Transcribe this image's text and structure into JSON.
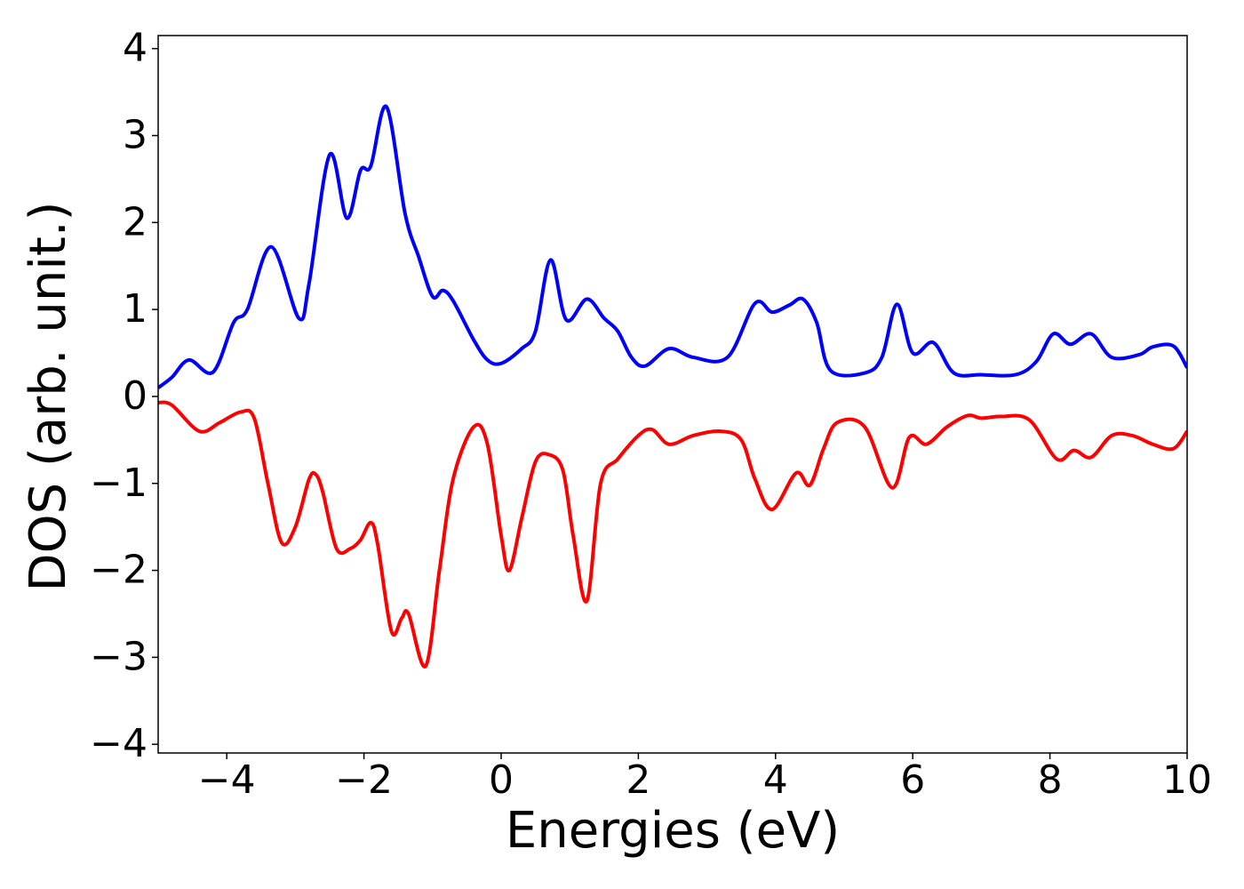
{
  "chart_data": {
    "type": "line",
    "xlabel": "Energies (eV)",
    "ylabel": "DOS (arb. unit.)",
    "xlim": [
      -5,
      10
    ],
    "ylim": [
      -4.1,
      4.15
    ],
    "xticks": [
      {
        "value": -4,
        "label": "−4"
      },
      {
        "value": -2,
        "label": "−2"
      },
      0,
      2,
      4,
      6,
      8,
      10
    ],
    "yticks": [
      {
        "value": -4,
        "label": "−4"
      },
      {
        "value": -3,
        "label": "−3"
      },
      {
        "value": -2,
        "label": "−2"
      },
      {
        "value": -1,
        "label": "−1"
      },
      0,
      1,
      2,
      3,
      4
    ],
    "grid": false,
    "series": [
      {
        "color": "#0000ff",
        "x": [
          -5,
          -4.8,
          -4.55,
          -4.2,
          -3.9,
          -3.7,
          -3.35,
          -2.95,
          -2.8,
          -2.5,
          -2.25,
          -2.05,
          -1.9,
          -1.67,
          -1.4,
          -1.2,
          -1.0,
          -0.85,
          -0.7,
          -0.4,
          -0.2,
          0,
          0.3,
          0.5,
          0.72,
          0.95,
          1.25,
          1.5,
          1.7,
          1.9,
          2.1,
          2.45,
          2.8,
          3.3,
          3.7,
          3.95,
          4.2,
          4.4,
          4.6,
          4.8,
          5.3,
          5.55,
          5.77,
          6.0,
          6.3,
          6.6,
          7.0,
          7.5,
          7.8,
          8.05,
          8.3,
          8.6,
          8.9,
          9.3,
          9.5,
          9.8,
          10
        ],
        "values": [
          0.1,
          0.22,
          0.42,
          0.28,
          0.85,
          1.0,
          1.72,
          0.9,
          1.3,
          2.78,
          2.05,
          2.6,
          2.65,
          3.33,
          2.1,
          1.6,
          1.15,
          1.22,
          1.1,
          0.65,
          0.42,
          0.38,
          0.55,
          0.75,
          1.57,
          0.88,
          1.12,
          0.9,
          0.75,
          0.45,
          0.35,
          0.55,
          0.45,
          0.45,
          1.07,
          0.97,
          1.05,
          1.12,
          0.85,
          0.3,
          0.27,
          0.45,
          1.06,
          0.5,
          0.62,
          0.27,
          0.25,
          0.25,
          0.4,
          0.72,
          0.6,
          0.72,
          0.45,
          0.48,
          0.57,
          0.58,
          0.33
        ]
      },
      {
        "color": "#ff0000",
        "x": [
          -5,
          -4.8,
          -4.4,
          -4.1,
          -3.8,
          -3.6,
          -3.4,
          -3.2,
          -3.0,
          -2.8,
          -2.7,
          -2.6,
          -2.4,
          -2.2,
          -2.05,
          -1.9,
          -1.8,
          -1.6,
          -1.45,
          -1.35,
          -1.1,
          -0.9,
          -0.7,
          -0.4,
          -0.2,
          0,
          0.12,
          0.3,
          0.5,
          0.7,
          0.9,
          1.05,
          1.25,
          1.45,
          1.7,
          2.0,
          2.2,
          2.45,
          2.8,
          3.2,
          3.5,
          3.7,
          3.95,
          4.3,
          4.5,
          4.7,
          4.9,
          5.3,
          5.7,
          5.95,
          6.2,
          6.5,
          6.8,
          7.0,
          7.3,
          7.7,
          8.1,
          8.35,
          8.6,
          8.9,
          9.2,
          9.5,
          9.8,
          10
        ],
        "values": [
          -0.07,
          -0.1,
          -0.4,
          -0.3,
          -0.18,
          -0.25,
          -1.0,
          -1.68,
          -1.5,
          -0.95,
          -0.9,
          -1.1,
          -1.75,
          -1.75,
          -1.65,
          -1.45,
          -1.7,
          -2.7,
          -2.55,
          -2.5,
          -3.1,
          -2.0,
          -0.95,
          -0.35,
          -0.55,
          -1.6,
          -2.0,
          -1.4,
          -0.75,
          -0.67,
          -0.85,
          -1.6,
          -2.35,
          -1.0,
          -0.72,
          -0.45,
          -0.38,
          -0.55,
          -0.45,
          -0.4,
          -0.5,
          -0.95,
          -1.3,
          -0.88,
          -1.02,
          -0.6,
          -0.3,
          -0.35,
          -1.05,
          -0.47,
          -0.55,
          -0.35,
          -0.22,
          -0.25,
          -0.23,
          -0.27,
          -0.72,
          -0.62,
          -0.7,
          -0.45,
          -0.45,
          -0.55,
          -0.6,
          -0.4
        ]
      }
    ]
  }
}
